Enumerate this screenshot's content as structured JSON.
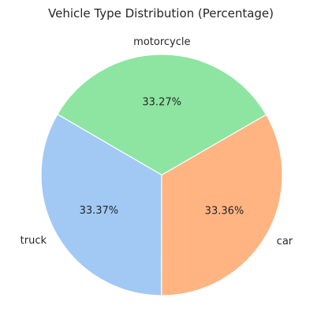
{
  "chart_data": {
    "type": "pie",
    "title": "Vehicle Type Distribution (Percentage)",
    "categories": [
      "motorcycle",
      "truck",
      "car"
    ],
    "values": [
      33.27,
      33.37,
      33.36
    ],
    "value_labels": [
      "33.27%",
      "33.37%",
      "33.36%"
    ],
    "colors": [
      "#8de5a1",
      "#a1c9f4",
      "#ffb482"
    ],
    "start_angle_deg": 30,
    "direction": "counterclockwise",
    "legend": false,
    "edge_color": "#ffffff"
  }
}
